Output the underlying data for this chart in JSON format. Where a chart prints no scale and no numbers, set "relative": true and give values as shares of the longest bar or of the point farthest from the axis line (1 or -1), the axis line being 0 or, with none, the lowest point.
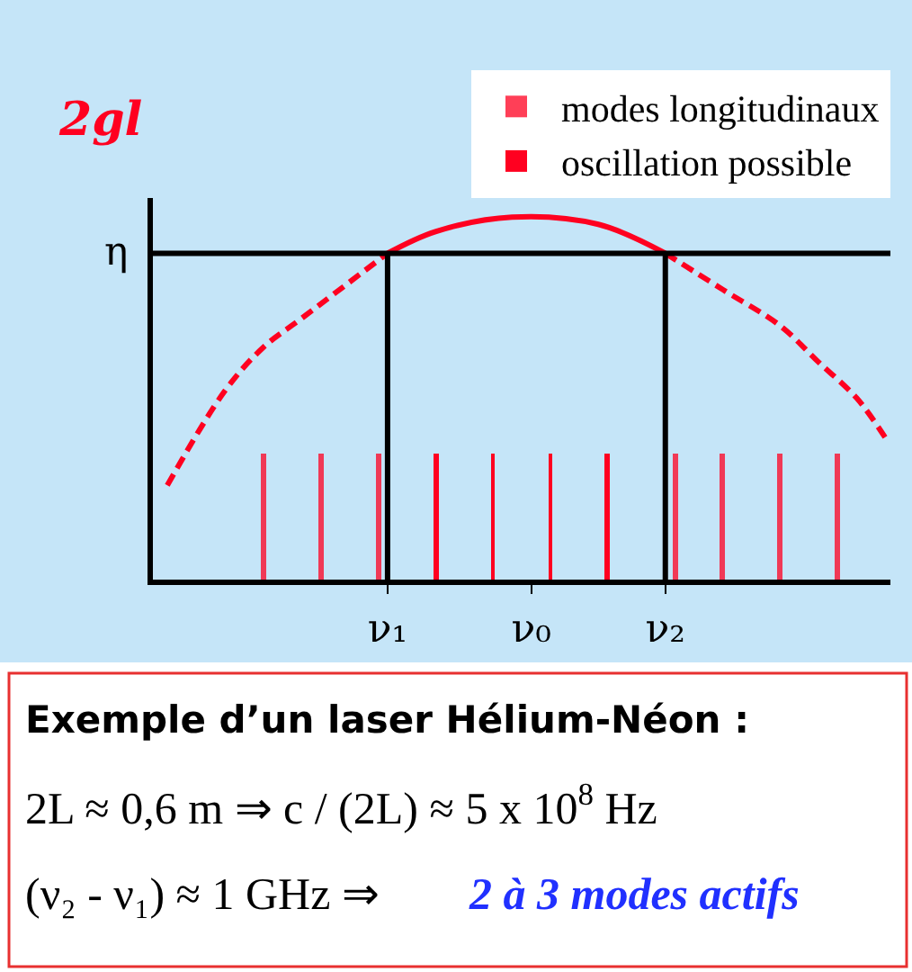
{
  "chart_data": {
    "type": "line",
    "relative": true,
    "ylabel": "2gl",
    "legend": "top right",
    "grid": false,
    "marker": "none",
    "categories": [
      null,
      null,
      null,
      null,
      null,
      null,
      null,
      null,
      null,
      null,
      null,
      null,
      null,
      null,
      null,
      null,
      null,
      null,
      null,
      null,
      null,
      null,
      null,
      null,
      "ν₁",
      null,
      null,
      null,
      null,
      null,
      null,
      null,
      null,
      null,
      null,
      null,
      null,
      null,
      null,
      "ν₀",
      null,
      null,
      null,
      null,
      null,
      null,
      null,
      null,
      null,
      null,
      null,
      null,
      null,
      "ν₂",
      null,
      null,
      null,
      null,
      null,
      null,
      null,
      null,
      null,
      null,
      null,
      null,
      null,
      null,
      null,
      null,
      null,
      null,
      null,
      null,
      null,
      null,
      null
    ],
    "series": [
      {
        "type": "bar",
        "name": "modes longitudinaux",
        "color": "#ff0020",
        "line_style": "dashed",
        "values": [
          null,
          null,
          null,
          null,
          null,
          null,
          null,
          null,
          null,
          null,
          null,
          0.35,
          null,
          null,
          null,
          null,
          null,
          0.35,
          null,
          null,
          null,
          null,
          null,
          0.35,
          null,
          null,
          null,
          null,
          null,
          null,
          null,
          null,
          null,
          null,
          null,
          null,
          null,
          null,
          null,
          null,
          null,
          null,
          null,
          null,
          null,
          null,
          null,
          null,
          null,
          null,
          null,
          null,
          null,
          null,
          0.35,
          null,
          null,
          null,
          null,
          0.35,
          null,
          null,
          null,
          null,
          null,
          0.35,
          null,
          null,
          null,
          null,
          null,
          0.35,
          null,
          null,
          null,
          null,
          null
        ]
      },
      {
        "type": "bar",
        "name": "oscillation possible",
        "color": "#ff0020",
        "line_style": "solid",
        "values": [
          null,
          null,
          null,
          null,
          null,
          null,
          null,
          null,
          null,
          null,
          null,
          null,
          null,
          null,
          null,
          null,
          null,
          null,
          null,
          null,
          null,
          null,
          null,
          null,
          null,
          null,
          null,
          null,
          null,
          0.35,
          null,
          null,
          null,
          null,
          null,
          0.35,
          null,
          null,
          null,
          null,
          null,
          0.35,
          null,
          null,
          null,
          null,
          null,
          0.35,
          null,
          null,
          null,
          null,
          null,
          null,
          null,
          null,
          null,
          null,
          null,
          null,
          null,
          null,
          null,
          null,
          null,
          null,
          null,
          null,
          null,
          null,
          null,
          null,
          null,
          null,
          null,
          null,
          null
        ]
      },
      {
        "color": "#ff0020",
        "line_style": "dashed",
        "values": [
          null,
          0.26,
          null,
          null,
          null,
          null,
          null,
          0.52,
          null,
          null,
          null,
          0.64,
          null,
          null,
          null,
          0.72,
          null,
          null,
          null,
          null,
          null,
          null,
          null,
          null,
          0.9,
          null,
          null,
          null,
          null,
          null,
          null,
          null,
          null,
          null,
          null,
          null,
          null,
          null,
          null,
          null,
          null,
          null,
          null,
          null,
          null,
          null,
          null,
          null,
          null,
          null,
          null,
          null,
          null,
          null,
          null,
          null,
          null,
          null,
          null,
          null,
          null,
          null,
          null,
          null,
          null,
          null,
          null,
          null,
          null,
          null,
          null,
          null,
          null,
          null,
          null,
          null,
          null
        ]
      },
      {
        "color": "#ff0020",
        "line_style": "solid",
        "values": [
          null,
          null,
          null,
          null,
          null,
          null,
          null,
          null,
          null,
          null,
          null,
          null,
          null,
          null,
          null,
          null,
          null,
          null,
          null,
          null,
          null,
          null,
          null,
          null,
          0.9,
          null,
          null,
          null,
          null,
          0.96,
          null,
          null,
          null,
          null,
          null,
          null,
          null,
          1.0,
          null,
          null,
          null,
          null,
          null,
          null,
          null,
          null,
          0.98,
          null,
          null,
          null,
          null,
          null,
          null,
          0.9,
          null,
          null,
          null,
          null,
          null,
          null,
          null,
          null,
          null,
          null,
          null,
          null,
          null,
          null,
          null,
          null,
          null,
          null,
          null,
          null,
          null,
          null,
          null
        ]
      },
      {
        "color": "#ff0020",
        "line_style": "dashed",
        "values": [
          null,
          null,
          null,
          null,
          null,
          null,
          null,
          null,
          null,
          null,
          null,
          null,
          null,
          null,
          null,
          null,
          null,
          null,
          null,
          null,
          null,
          null,
          null,
          null,
          null,
          null,
          null,
          null,
          null,
          null,
          null,
          null,
          null,
          null,
          null,
          null,
          null,
          null,
          null,
          null,
          null,
          null,
          null,
          null,
          null,
          null,
          null,
          null,
          null,
          null,
          null,
          null,
          null,
          0.9,
          null,
          null,
          null,
          null,
          null,
          0.8,
          null,
          null,
          null,
          null,
          null,
          0.7,
          null,
          null,
          null,
          0.6,
          null,
          null,
          null,
          0.5,
          null,
          null,
          0.39
        ]
      }
    ],
    "ref_lines": [
      {
        "axis": "y",
        "value": 0.9,
        "label": "η",
        "color": "#000000"
      },
      {
        "axis": "x",
        "value": "ν₁",
        "label": null,
        "color": "#000000"
      },
      {
        "axis": "x",
        "value": "ν₂",
        "label": null,
        "color": "#000000"
      }
    ],
    "annotations": [
      "Exemple d’un laser Hélium-Néon :",
      "2L ≈ 0,6 m ⇒ c / (2L) ≈ 5 x 10$^{8}$ Hz",
      "(ν₂ - ν₁) ≈ 1 GHz ⇒",
      "2 à 3 modes actifs"
    ]
  }
}
